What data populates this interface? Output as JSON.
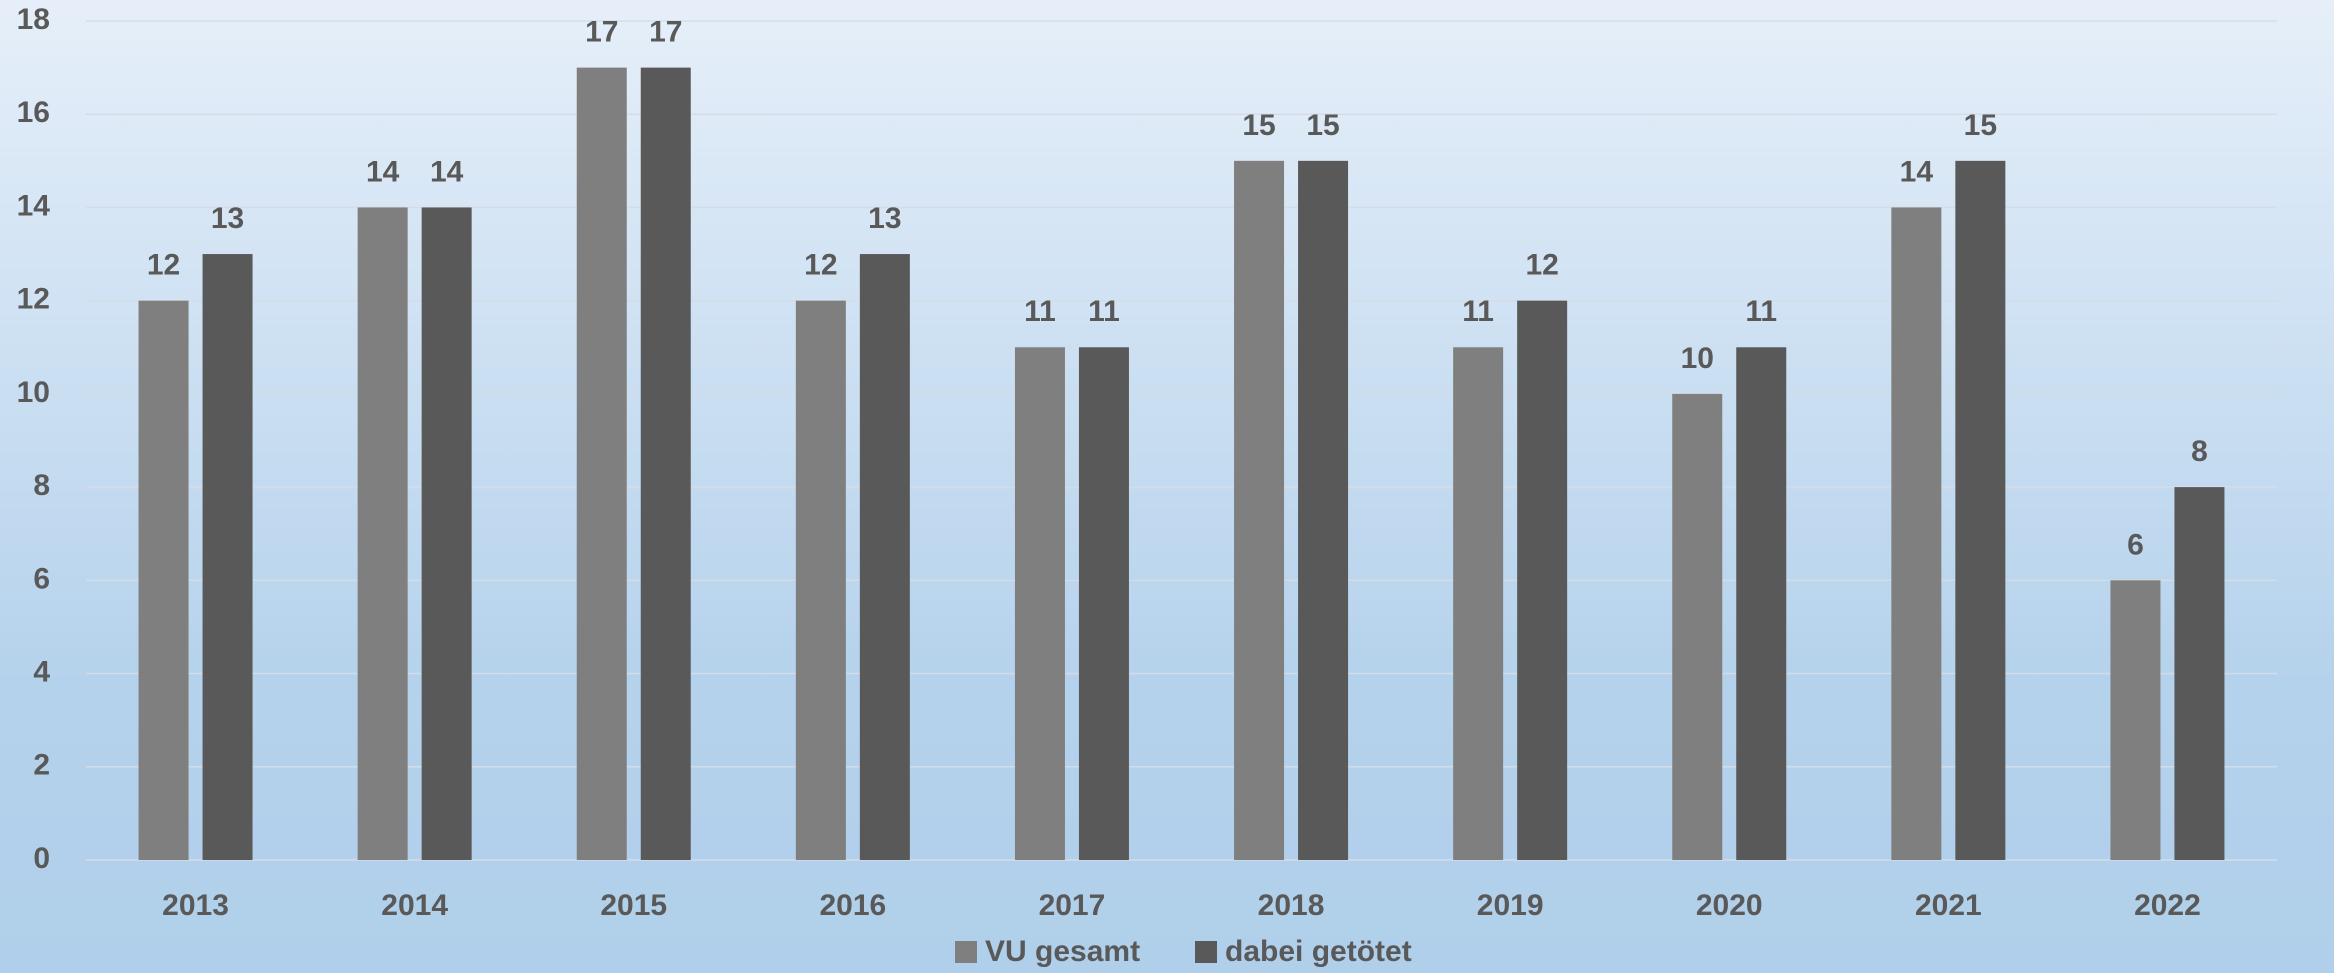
{
  "chart_data": {
    "type": "bar",
    "categories": [
      "2013",
      "2014",
      "2015",
      "2016",
      "2017",
      "2018",
      "2019",
      "2020",
      "2021",
      "2022"
    ],
    "series": [
      {
        "name": "VU gesamt",
        "color": "#7f7f7f",
        "values": [
          12,
          14,
          17,
          12,
          11,
          15,
          11,
          10,
          14,
          6
        ]
      },
      {
        "name": "dabei getötet",
        "color": "#595959",
        "values": [
          13,
          14,
          17,
          13,
          11,
          15,
          12,
          11,
          15,
          8
        ]
      }
    ],
    "ylim": [
      0,
      18
    ],
    "yticks": [
      0,
      2,
      4,
      6,
      8,
      10,
      12,
      14,
      16,
      18
    ],
    "grid": true,
    "legend": "bottom",
    "data_labels": true
  }
}
